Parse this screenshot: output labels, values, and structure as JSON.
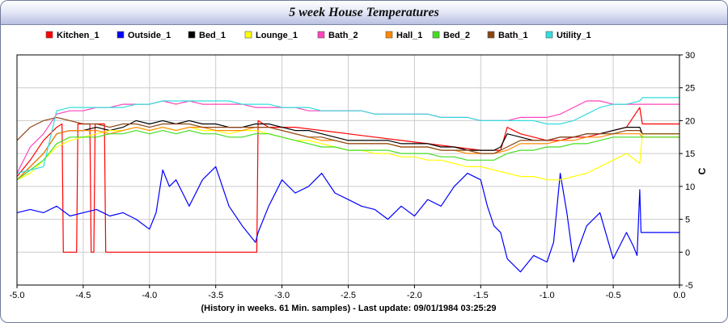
{
  "window": {
    "title": "5 week House Temperatures"
  },
  "chart_data": {
    "type": "line",
    "title": "5 week House Temperatures",
    "xlabel": "(History in weeks. 61 Min. samples) - Last update: 09/01/1984 03:25:29",
    "ylabel": "C",
    "xlim": [
      -5.0,
      0.0
    ],
    "ylim": [
      -5,
      30
    ],
    "x_ticks": [
      "-5.0",
      "-4.5",
      "-4.0",
      "-3.5",
      "-3.0",
      "-2.5",
      "-2.0",
      "-1.5",
      "-1.0",
      "-0.5",
      "0.0"
    ],
    "y_ticks": [
      "-5",
      "0",
      "5",
      "10",
      "15",
      "20",
      "25",
      "30"
    ],
    "grid": true,
    "legend_position": "top",
    "series": [
      {
        "name": "Kitchen_1",
        "color": "#ff0000",
        "x": [
          -5.0,
          -4.9,
          -4.8,
          -4.7,
          -4.66,
          -4.65,
          -4.55,
          -4.54,
          -4.45,
          -4.44,
          -4.42,
          -4.41,
          -4.34,
          -4.33,
          -3.19,
          -3.18,
          -3.1,
          -2.9,
          -2.7,
          -2.5,
          -2.3,
          -2.1,
          -1.9,
          -1.7,
          -1.5,
          -1.35,
          -1.3,
          -1.2,
          -1.1,
          -1.0,
          -0.9,
          -0.8,
          -0.7,
          -0.6,
          -0.5,
          -0.4,
          -0.3,
          -0.28,
          0.0
        ],
        "y": [
          11.5,
          14,
          17,
          19,
          19.5,
          0,
          0,
          19.5,
          19.5,
          0,
          0,
          19.5,
          19.5,
          0,
          0,
          20,
          19,
          19,
          18.5,
          18,
          17.5,
          17,
          16.5,
          16,
          15.5,
          15.5,
          19,
          18,
          17.5,
          17,
          17,
          17.5,
          17.5,
          18,
          18.5,
          19,
          22,
          19.5,
          19.5
        ]
      },
      {
        "name": "Outside_1",
        "color": "#0000ff",
        "x": [
          -5.0,
          -4.9,
          -4.8,
          -4.7,
          -4.6,
          -4.5,
          -4.4,
          -4.3,
          -4.2,
          -4.1,
          -4.0,
          -3.95,
          -3.9,
          -3.85,
          -3.8,
          -3.75,
          -3.7,
          -3.6,
          -3.5,
          -3.4,
          -3.3,
          -3.2,
          -3.18,
          -3.1,
          -3.0,
          -2.9,
          -2.8,
          -2.7,
          -2.6,
          -2.5,
          -2.4,
          -2.3,
          -2.2,
          -2.1,
          -2.0,
          -1.9,
          -1.8,
          -1.7,
          -1.6,
          -1.5,
          -1.45,
          -1.4,
          -1.35,
          -1.3,
          -1.2,
          -1.1,
          -1.0,
          -0.95,
          -0.9,
          -0.85,
          -0.8,
          -0.7,
          -0.6,
          -0.5,
          -0.4,
          -0.35,
          -0.32,
          -0.3,
          -0.29,
          0.0
        ],
        "y": [
          6,
          6.5,
          6,
          7,
          5.5,
          6,
          6.5,
          5.5,
          6,
          5,
          3.5,
          6,
          12.5,
          10,
          11,
          9,
          7,
          11,
          13,
          7,
          4,
          1.5,
          3,
          7,
          11,
          9,
          10,
          12,
          9,
          8,
          7,
          6.5,
          5,
          7,
          5.5,
          8,
          7,
          10,
          12,
          11,
          7,
          4,
          3,
          -1,
          -3,
          -0.5,
          -1.5,
          1.5,
          12,
          6,
          -1.5,
          4,
          6,
          -1,
          3,
          1,
          -0.5,
          9.5,
          3,
          3
        ]
      },
      {
        "name": "Bed_1",
        "color": "#000000",
        "x": [
          -5.0,
          -4.9,
          -4.8,
          -4.7,
          -4.6,
          -4.5,
          -4.4,
          -4.3,
          -4.2,
          -4.1,
          -4.0,
          -3.9,
          -3.8,
          -3.7,
          -3.6,
          -3.5,
          -3.4,
          -3.3,
          -3.2,
          -3.1,
          -3.0,
          -2.9,
          -2.8,
          -2.7,
          -2.6,
          -2.5,
          -2.4,
          -2.3,
          -2.2,
          -2.1,
          -2.0,
          -1.9,
          -1.8,
          -1.7,
          -1.6,
          -1.5,
          -1.4,
          -1.35,
          -1.3,
          -1.2,
          -1.1,
          -1.0,
          -0.9,
          -0.8,
          -0.7,
          -0.6,
          -0.5,
          -0.4,
          -0.3,
          -0.28,
          0.0
        ],
        "y": [
          11,
          13,
          15,
          18,
          18.5,
          18.5,
          19,
          18.5,
          19,
          20,
          19.5,
          20,
          19.5,
          20,
          19.5,
          19.5,
          19,
          19,
          19.5,
          19.5,
          19,
          18.5,
          18.5,
          18,
          17.5,
          17,
          17,
          17,
          17,
          16.5,
          16.5,
          16.5,
          16,
          16,
          15.5,
          15.5,
          15.5,
          16,
          18,
          17.5,
          17,
          17,
          17.5,
          17.5,
          18,
          18,
          18.5,
          19,
          19,
          18,
          18
        ]
      },
      {
        "name": "Lounge_1",
        "color": "#ffff00",
        "x": [
          -5.0,
          -4.9,
          -4.8,
          -4.7,
          -4.6,
          -4.5,
          -4.4,
          -4.3,
          -4.2,
          -4.1,
          -4.0,
          -3.9,
          -3.8,
          -3.7,
          -3.6,
          -3.5,
          -3.4,
          -3.3,
          -3.2,
          -3.1,
          -3.0,
          -2.9,
          -2.8,
          -2.7,
          -2.6,
          -2.5,
          -2.4,
          -2.3,
          -2.2,
          -2.1,
          -2.0,
          -1.9,
          -1.8,
          -1.7,
          -1.6,
          -1.5,
          -1.4,
          -1.3,
          -1.2,
          -1.1,
          -1.0,
          -0.9,
          -0.8,
          -0.7,
          -0.6,
          -0.5,
          -0.4,
          -0.3,
          -0.28,
          0.0
        ],
        "y": [
          11,
          12,
          14,
          16,
          17,
          17.5,
          18,
          18.5,
          18.5,
          19,
          18.5,
          19,
          18.5,
          19,
          18.5,
          18.5,
          18,
          18.5,
          18.5,
          18,
          17.5,
          17,
          17,
          16.5,
          16,
          15.5,
          15.5,
          15,
          15,
          14.5,
          14.5,
          14,
          14,
          13.5,
          13,
          13,
          12.5,
          12,
          11.5,
          11.5,
          11,
          11,
          11.5,
          12,
          13,
          14,
          15,
          13.5,
          18,
          18
        ]
      },
      {
        "name": "Bath_2",
        "color": "#ff44bb",
        "x": [
          -5.0,
          -4.9,
          -4.8,
          -4.7,
          -4.6,
          -4.5,
          -4.4,
          -4.3,
          -4.2,
          -4.1,
          -4.0,
          -3.9,
          -3.8,
          -3.7,
          -3.6,
          -3.5,
          -3.4,
          -3.3,
          -3.2,
          -3.1,
          -3.0,
          -2.9,
          -2.8,
          -2.7,
          -2.6,
          -2.5,
          -2.4,
          -2.3,
          -2.2,
          -2.1,
          -2.0,
          -1.9,
          -1.8,
          -1.7,
          -1.6,
          -1.5,
          -1.4,
          -1.3,
          -1.2,
          -1.1,
          -1.0,
          -0.9,
          -0.8,
          -0.7,
          -0.6,
          -0.5,
          -0.4,
          -0.3,
          -0.28,
          0.0
        ],
        "y": [
          12,
          16,
          18,
          21,
          21.5,
          21.5,
          22,
          22,
          22.5,
          22.5,
          22.5,
          23,
          22.5,
          23,
          22.5,
          22.5,
          22.5,
          22.5,
          22,
          22,
          22,
          22,
          21.5,
          21.5,
          21.5,
          21.5,
          21.5,
          21,
          21,
          21,
          21,
          21,
          20.5,
          20.5,
          20.5,
          20,
          20,
          20,
          20.5,
          20.5,
          20.5,
          21,
          22,
          23,
          23,
          22.5,
          22.5,
          22.5,
          22.5,
          22.5
        ]
      },
      {
        "name": "Hall_1",
        "color": "#ff8800",
        "x": [
          -5.0,
          -4.9,
          -4.8,
          -4.7,
          -4.6,
          -4.5,
          -4.4,
          -4.3,
          -4.2,
          -4.1,
          -4.0,
          -3.9,
          -3.8,
          -3.7,
          -3.6,
          -3.5,
          -3.4,
          -3.3,
          -3.2,
          -3.1,
          -3.0,
          -2.9,
          -2.8,
          -2.7,
          -2.6,
          -2.5,
          -2.4,
          -2.3,
          -2.2,
          -2.1,
          -2.0,
          -1.9,
          -1.8,
          -1.7,
          -1.6,
          -1.5,
          -1.4,
          -1.3,
          -1.2,
          -1.1,
          -1.0,
          -0.9,
          -0.8,
          -0.7,
          -0.6,
          -0.5,
          -0.4,
          -0.3,
          -0.28,
          0.0
        ],
        "y": [
          11,
          13,
          15,
          18,
          18.5,
          18.5,
          18.5,
          18,
          18.5,
          19,
          18.5,
          19,
          18.5,
          19,
          19,
          18.5,
          18.5,
          18.5,
          19,
          19,
          18.5,
          18,
          17.5,
          17,
          17,
          16.5,
          16.5,
          16.5,
          16.5,
          16,
          16,
          16,
          15.5,
          15.5,
          15,
          15,
          15,
          15.5,
          16.5,
          16.5,
          16.5,
          17,
          17,
          17.5,
          17.5,
          18,
          18,
          18,
          17.5,
          17.5
        ]
      },
      {
        "name": "Bed_2",
        "color": "#44dd22",
        "x": [
          -5.0,
          -4.9,
          -4.8,
          -4.7,
          -4.6,
          -4.5,
          -4.4,
          -4.3,
          -4.2,
          -4.1,
          -4.0,
          -3.9,
          -3.8,
          -3.7,
          -3.6,
          -3.5,
          -3.4,
          -3.3,
          -3.2,
          -3.1,
          -3.0,
          -2.9,
          -2.8,
          -2.7,
          -2.6,
          -2.5,
          -2.4,
          -2.3,
          -2.2,
          -2.1,
          -2.0,
          -1.9,
          -1.8,
          -1.7,
          -1.6,
          -1.5,
          -1.4,
          -1.3,
          -1.2,
          -1.1,
          -1.0,
          -0.9,
          -0.8,
          -0.7,
          -0.6,
          -0.5,
          -0.4,
          -0.3,
          -0.28,
          0.0
        ],
        "y": [
          11,
          12.5,
          14,
          16.5,
          17.5,
          17.5,
          17.5,
          18,
          18,
          18.5,
          18,
          18.5,
          18,
          18.5,
          18,
          18,
          17.5,
          17.5,
          18,
          18,
          17.5,
          17,
          16.5,
          16,
          16,
          15.5,
          15.5,
          15.5,
          15.5,
          15,
          15,
          15,
          14.5,
          14.5,
          14,
          14,
          14,
          15,
          15.5,
          15.5,
          16,
          16,
          16.5,
          16.5,
          17,
          17.5,
          17.5,
          17.5,
          17.5,
          17.5
        ]
      },
      {
        "name": "Bath_1",
        "color": "#8b4513",
        "x": [
          -5.0,
          -4.9,
          -4.8,
          -4.7,
          -4.6,
          -4.5,
          -4.4,
          -4.3,
          -4.2,
          -4.1,
          -4.0,
          -3.9,
          -3.8,
          -3.7,
          -3.6,
          -3.5,
          -3.4,
          -3.3,
          -3.2,
          -3.1,
          -3.0,
          -2.9,
          -2.8,
          -2.7,
          -2.6,
          -2.5,
          -2.4,
          -2.3,
          -2.2,
          -2.1,
          -2.0,
          -1.9,
          -1.8,
          -1.7,
          -1.6,
          -1.5,
          -1.4,
          -1.3,
          -1.2,
          -1.1,
          -1.0,
          -0.9,
          -0.8,
          -0.7,
          -0.6,
          -0.5,
          -0.4,
          -0.3,
          -0.28,
          0.0
        ],
        "y": [
          17,
          19,
          20,
          20.5,
          20,
          19.5,
          19.5,
          19,
          19.5,
          19.5,
          19,
          19.5,
          19.5,
          19.5,
          19,
          19,
          19,
          19,
          19,
          19,
          18.5,
          18,
          17.5,
          17.5,
          17,
          16.5,
          16.5,
          16.5,
          16.5,
          16,
          16,
          16,
          15.5,
          15.5,
          15.5,
          15,
          15,
          16,
          17,
          17,
          17,
          17.5,
          17.5,
          18,
          18,
          18,
          18.5,
          18.5,
          18,
          18
        ]
      },
      {
        "name": "Utility_1",
        "color": "#33dddd",
        "x": [
          -5.0,
          -4.9,
          -4.8,
          -4.7,
          -4.6,
          -4.5,
          -4.4,
          -4.3,
          -4.2,
          -4.1,
          -4.0,
          -3.9,
          -3.8,
          -3.7,
          -3.6,
          -3.5,
          -3.4,
          -3.3,
          -3.2,
          -3.1,
          -3.0,
          -2.9,
          -2.8,
          -2.7,
          -2.6,
          -2.5,
          -2.4,
          -2.3,
          -2.2,
          -2.1,
          -2.0,
          -1.9,
          -1.8,
          -1.7,
          -1.6,
          -1.5,
          -1.4,
          -1.3,
          -1.2,
          -1.1,
          -1.0,
          -0.9,
          -0.8,
          -0.7,
          -0.6,
          -0.5,
          -0.4,
          -0.3,
          -0.28,
          0.0
        ],
        "y": [
          12,
          12.5,
          13,
          21.5,
          22,
          22,
          22,
          22,
          22,
          22.5,
          22.5,
          23,
          23,
          23,
          23,
          23,
          23,
          22.5,
          22.5,
          22.5,
          22,
          22,
          22,
          21.5,
          21.5,
          21.5,
          21.5,
          21,
          21,
          21,
          21,
          21,
          20.5,
          20.5,
          20.5,
          20,
          20,
          20,
          20,
          20,
          19.5,
          19.5,
          20,
          21,
          22,
          22.5,
          22.5,
          23,
          23.5,
          23.5
        ]
      }
    ]
  }
}
